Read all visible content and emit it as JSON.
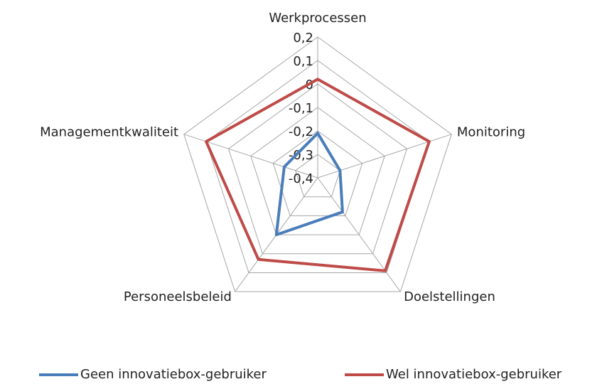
{
  "chart_data": {
    "type": "radar",
    "categories": [
      "Werkprocessen",
      "Monitoring",
      "Doelstellingen",
      "Personeelsbeleid",
      "Managementkwaliteit"
    ],
    "series": [
      {
        "name": "Geen innovatiebox-gebruiker",
        "color": "#4a7ebb",
        "values": [
          -0.21,
          -0.3,
          -0.22,
          -0.1,
          -0.25
        ]
      },
      {
        "name": "Wel innovatiebox-gebruiker",
        "color": "#be4b48",
        "values": [
          0.02,
          0.1,
          0.09,
          0.03,
          0.1
        ]
      }
    ],
    "ylim": [
      -0.4,
      0.2
    ],
    "yticks": [
      {
        "value": -0.4,
        "label": "-0,4"
      },
      {
        "value": -0.3,
        "label": "-0,3"
      },
      {
        "value": -0.2,
        "label": "-0,2"
      },
      {
        "value": -0.1,
        "label": "-0,1"
      },
      0,
      {
        "value": 0.1,
        "label": "0,1"
      },
      {
        "value": 0.2,
        "label": "0,2"
      }
    ],
    "grid": true,
    "legend": "bottom"
  }
}
